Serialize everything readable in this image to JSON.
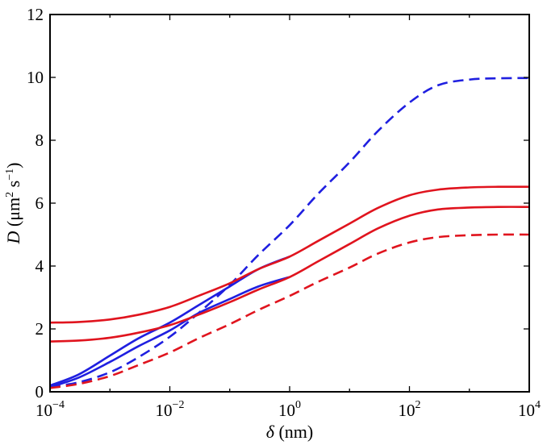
{
  "chart_data": {
    "type": "line",
    "x_scale": "log10",
    "xlim": [
      0.0001,
      10000
    ],
    "ylim": [
      0,
      12
    ],
    "grid": false,
    "legend": "none",
    "xlabel": {
      "symbol": "δ",
      "unit": " (nm)"
    },
    "ylabel": {
      "symbol": "D",
      "unit_prefix": "  (μm",
      "unit_exp1": "2",
      "unit_mid": " s",
      "unit_exp2": "−1",
      "unit_suffix": ")"
    },
    "x_ticks": [
      {
        "value": 0.0001,
        "base": "10",
        "exp": "−4"
      },
      {
        "value": 0.01,
        "base": "10",
        "exp": "−2"
      },
      {
        "value": 1,
        "base": "10",
        "exp": "0"
      },
      {
        "value": 100,
        "base": "10",
        "exp": "2"
      },
      {
        "value": 10000,
        "base": "10",
        "exp": "4"
      }
    ],
    "y_ticks": [
      {
        "value": 0,
        "label": "0"
      },
      {
        "value": 2,
        "label": "2"
      },
      {
        "value": 4,
        "label": "4"
      },
      {
        "value": 6,
        "label": "6"
      },
      {
        "value": 8,
        "label": "8"
      },
      {
        "value": 10,
        "label": "10"
      },
      {
        "value": 12,
        "label": "12"
      }
    ],
    "series": [
      {
        "color": "#1f1fe0",
        "style": "dashed",
        "x": [
          0.0001,
          0.0003,
          0.001,
          0.003,
          0.01,
          0.03,
          0.1,
          0.3,
          1,
          3,
          10,
          30,
          100,
          300,
          1000,
          3000,
          10000
        ],
        "y": [
          0.15,
          0.3,
          0.62,
          1.1,
          1.75,
          2.5,
          3.4,
          4.35,
          5.3,
          6.3,
          7.3,
          8.3,
          9.2,
          9.75,
          9.93,
          9.97,
          9.98
        ]
      },
      {
        "color": "#1f1fe0",
        "style": "solid",
        "x": [
          0.0001,
          0.0003,
          0.001,
          0.003,
          0.01,
          0.03,
          0.1,
          0.3,
          1
        ],
        "y": [
          0.2,
          0.55,
          1.15,
          1.7,
          2.2,
          2.75,
          3.35,
          3.9,
          4.3
        ]
      },
      {
        "color": "#1f1fe0",
        "style": "solid",
        "x": [
          0.0001,
          0.0003,
          0.001,
          0.003,
          0.01,
          0.03,
          0.1,
          0.3,
          1
        ],
        "y": [
          0.15,
          0.45,
          0.95,
          1.45,
          1.95,
          2.5,
          2.95,
          3.35,
          3.65
        ]
      },
      {
        "color": "#e0141e",
        "style": "solid",
        "x": [
          0.0001,
          0.0003,
          0.001,
          0.003,
          0.01,
          0.03,
          0.1,
          0.3,
          1,
          3,
          10,
          30,
          100,
          300,
          1000,
          3000,
          10000
        ],
        "y": [
          2.2,
          2.22,
          2.3,
          2.45,
          2.7,
          3.05,
          3.45,
          3.9,
          4.3,
          4.8,
          5.35,
          5.85,
          6.25,
          6.43,
          6.5,
          6.52,
          6.52
        ]
      },
      {
        "color": "#e0141e",
        "style": "solid",
        "x": [
          0.0001,
          0.0003,
          0.001,
          0.003,
          0.01,
          0.03,
          0.1,
          0.3,
          1,
          3,
          10,
          30,
          100,
          300,
          1000,
          3000,
          10000
        ],
        "y": [
          1.6,
          1.63,
          1.72,
          1.88,
          2.12,
          2.45,
          2.85,
          3.25,
          3.65,
          4.15,
          4.7,
          5.2,
          5.6,
          5.8,
          5.86,
          5.88,
          5.88
        ]
      },
      {
        "color": "#e0141e",
        "style": "dashed",
        "x": [
          0.0001,
          0.0003,
          0.001,
          0.003,
          0.01,
          0.03,
          0.1,
          0.3,
          1,
          3,
          10,
          30,
          100,
          300,
          1000,
          3000,
          10000
        ],
        "y": [
          0.12,
          0.25,
          0.5,
          0.85,
          1.25,
          1.7,
          2.15,
          2.6,
          3.05,
          3.5,
          3.95,
          4.4,
          4.75,
          4.92,
          4.98,
          5.0,
          5.0
        ]
      }
    ]
  }
}
